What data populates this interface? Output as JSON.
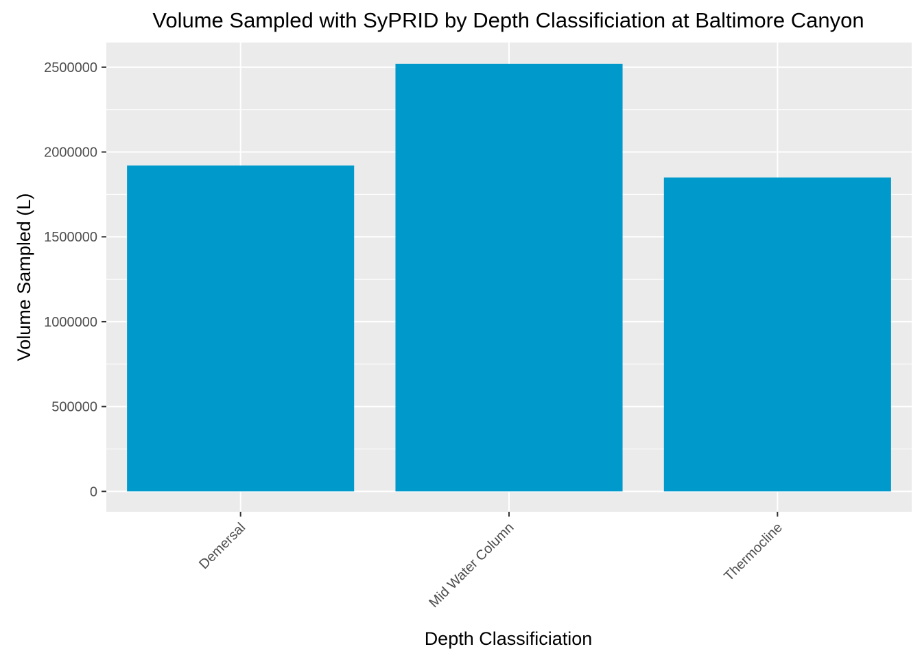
{
  "chart_data": {
    "type": "bar",
    "title": "Volume Sampled with SyPRID by Depth Classificiation at Baltimore Canyon",
    "xlabel": "Depth Classificiation",
    "ylabel": "Volume Sampled (L)",
    "categories": [
      "Demersal",
      "Mid Water Column",
      "Thermocline"
    ],
    "values": [
      1920000,
      2520000,
      1850000
    ],
    "ylim": [
      -120000,
      2645000
    ],
    "yticks": [
      0,
      500000,
      1000000,
      1500000,
      2000000,
      2500000
    ],
    "ytick_labels": [
      "0",
      "500000",
      "1000000",
      "1500000",
      "2000000",
      "2500000"
    ],
    "grid": true,
    "legend": "none",
    "colors": {
      "bar": "#0099cc",
      "panel_background": "#ebebeb",
      "grid": "#ffffff",
      "tick": "#333333"
    }
  }
}
